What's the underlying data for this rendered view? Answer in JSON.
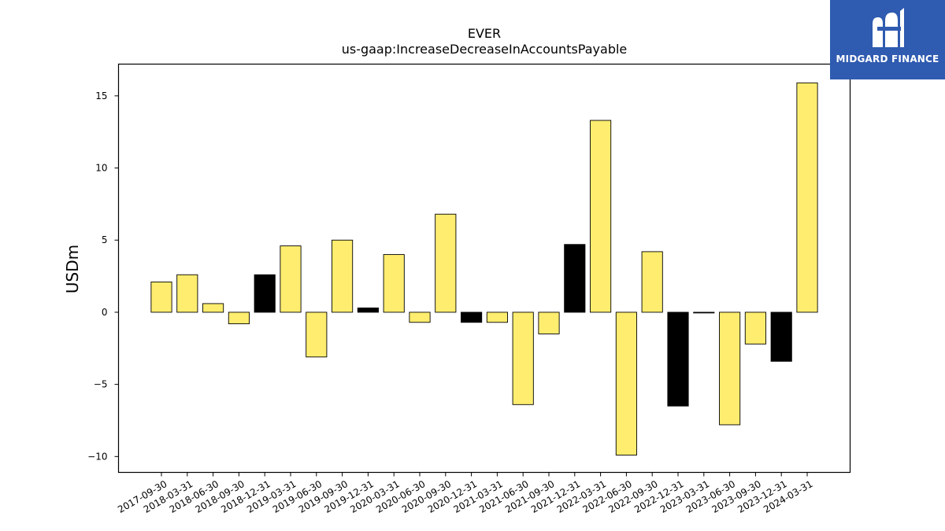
{
  "logo": {
    "text": "MIDGARD FINANCE",
    "icon": "midgard-m-logo-icon",
    "color": "#2f5bb0"
  },
  "chart_data": {
    "type": "bar",
    "title": "EVER",
    "subtitle": "us-gaap:IncreaseDecreaseInAccountsPayable",
    "xlabel": "",
    "ylabel": "USDm",
    "ylim": [
      -11.1,
      17.2
    ],
    "yticks": [
      -10,
      -5,
      0,
      5,
      10,
      15
    ],
    "ytick_labels": [
      "−10",
      "−5",
      "0",
      "5",
      "10",
      "15"
    ],
    "grid": false,
    "colors": {
      "q3_q4_fy": "#ffed6f",
      "q4": "#000000",
      "edge": "#000000"
    },
    "categories": [
      "2017-09-30",
      "2018-03-31",
      "2018-06-30",
      "2018-09-30",
      "2018-12-31",
      "2019-03-31",
      "2019-06-30",
      "2019-09-30",
      "2019-12-31",
      "2020-03-31",
      "2020-06-30",
      "2020-09-30",
      "2020-12-31",
      "2021-03-31",
      "2021-06-30",
      "2021-09-30",
      "2021-12-31",
      "2022-03-31",
      "2022-06-30",
      "2022-09-30",
      "2022-12-31",
      "2023-03-31",
      "2023-06-30",
      "2023-09-30",
      "2023-12-31",
      "2024-03-31"
    ],
    "values": [
      2.1,
      2.6,
      0.6,
      -0.8,
      2.6,
      4.6,
      -3.1,
      5.0,
      0.3,
      4.0,
      -0.7,
      6.8,
      -0.7,
      -0.7,
      -6.4,
      -1.5,
      4.7,
      13.3,
      -9.9,
      4.2,
      -6.5,
      -0.05,
      -7.8,
      -2.2,
      -3.4,
      15.9
    ],
    "bar_colors": [
      "#ffed6f",
      "#ffed6f",
      "#ffed6f",
      "#ffed6f",
      "#000000",
      "#ffed6f",
      "#ffed6f",
      "#ffed6f",
      "#000000",
      "#ffed6f",
      "#ffed6f",
      "#ffed6f",
      "#000000",
      "#ffed6f",
      "#ffed6f",
      "#ffed6f",
      "#000000",
      "#ffed6f",
      "#ffed6f",
      "#ffed6f",
      "#000000",
      "#ffed6f",
      "#ffed6f",
      "#ffed6f",
      "#000000",
      "#ffed6f"
    ]
  }
}
